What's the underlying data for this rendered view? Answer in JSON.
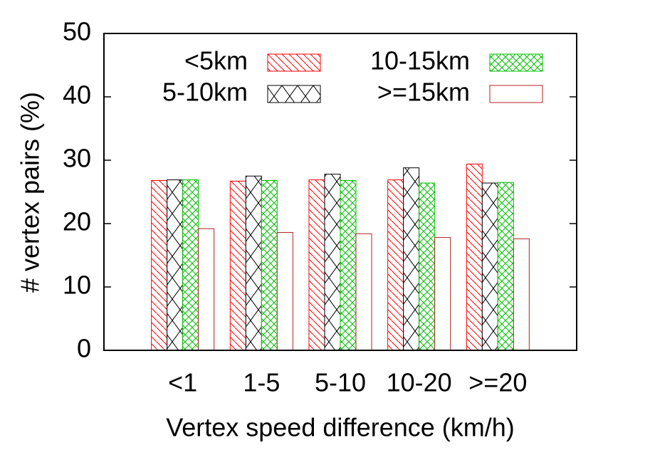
{
  "chart_data": {
    "type": "bar",
    "x_label": "Vertex speed difference (km/h)",
    "y_label": "# vertex pairs (%)",
    "categories": [
      "<1",
      "1-5",
      "5-10",
      "10-20",
      ">=20"
    ],
    "series": [
      {
        "name": "<5km",
        "color": "#ff0000",
        "hatch": "diagonal",
        "values": [
          26.8,
          26.7,
          26.9,
          26.9,
          29.4
        ]
      },
      {
        "name": "5-10km",
        "color": "#000000",
        "hatch": "cross-large",
        "values": [
          26.9,
          27.5,
          27.8,
          28.8,
          26.4
        ]
      },
      {
        "name": "10-15km",
        "color": "#00c000",
        "hatch": "cross",
        "values": [
          26.9,
          26.8,
          26.8,
          26.4,
          26.5
        ]
      },
      {
        "name": ">=15km",
        "color": "#b22222",
        "hatch": "none",
        "values": [
          19.2,
          18.6,
          18.4,
          17.8,
          17.6
        ]
      }
    ],
    "ylim": [
      0,
      50
    ],
    "yticks": [
      0,
      10,
      20,
      30,
      40,
      50
    ],
    "legend": "top"
  }
}
